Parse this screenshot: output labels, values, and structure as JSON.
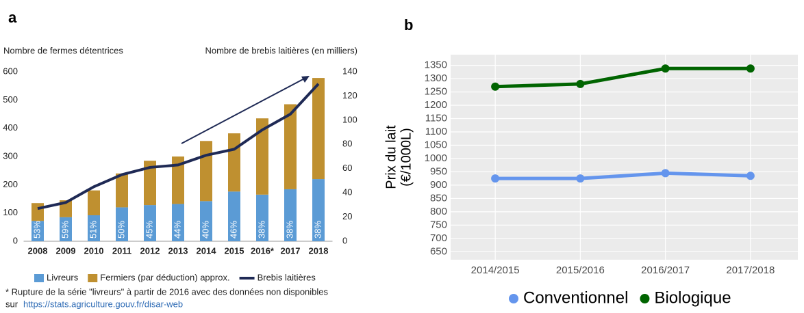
{
  "chart_data": [
    {
      "type": "bar_line",
      "stacked": true,
      "panel": "a",
      "ylabel": "Nombre de fermes détentrices",
      "y2label": "Nombre de brebis laitières (en milliers)",
      "categories": [
        "2008",
        "2009",
        "2010",
        "2011",
        "2012",
        "2013",
        "2014",
        "2015",
        "2016*",
        "2017",
        "2018"
      ],
      "series": [
        {
          "name": "Livreurs",
          "color": "#5b9bd5",
          "values": [
            72,
            85,
            92,
            120,
            128,
            132,
            142,
            176,
            165,
            184,
            220
          ],
          "share_labels": [
            "53%",
            "59%",
            "51%",
            "50%",
            "45%",
            "44%",
            "40%",
            "46%",
            "38%",
            "38%",
            "38%"
          ]
        },
        {
          "name": "Fermiers (par déduction) approx.",
          "color": "#bf9030",
          "values": [
            63,
            60,
            88,
            120,
            157,
            168,
            213,
            206,
            270,
            301,
            358
          ]
        },
        {
          "name": "Brebis laitières",
          "color": "#1f2a55",
          "axis": "y2",
          "values": [
            27,
            32,
            45,
            55,
            61,
            63,
            71,
            76,
            92,
            105,
            130
          ]
        }
      ],
      "ylim": [
        0,
        600
      ],
      "yticks": [
        0,
        100,
        200,
        300,
        400,
        500,
        600
      ],
      "y2lim": [
        0,
        140
      ],
      "y2ticks": [
        0,
        20,
        40,
        60,
        80,
        100,
        120,
        140
      ],
      "footnote": "* Rupture de la série \"livreurs\" à partir de 2016 avec des données non disponibles",
      "source_prefix": "sur",
      "source_url": "https://stats.agriculture.gouv.fr/disar-web"
    },
    {
      "type": "line",
      "panel": "b",
      "ylabel": [
        "Prix du lait",
        "(€/1000L)"
      ],
      "categories": [
        "2014/2015",
        "2015/2016",
        "2016/2017",
        "2017/2018"
      ],
      "series": [
        {
          "name": "Conventionnel",
          "color": "#6495ed",
          "values": [
            925,
            925,
            945,
            935
          ]
        },
        {
          "name": "Biologique",
          "color": "#006400",
          "values": [
            1270,
            1280,
            1338,
            1338
          ]
        }
      ],
      "ylim": [
        620,
        1390
      ],
      "yticks": [
        650,
        700,
        750,
        800,
        850,
        900,
        950,
        1000,
        1050,
        1100,
        1150,
        1200,
        1250,
        1300,
        1350
      ],
      "grid": true,
      "legend": "bottom"
    }
  ]
}
